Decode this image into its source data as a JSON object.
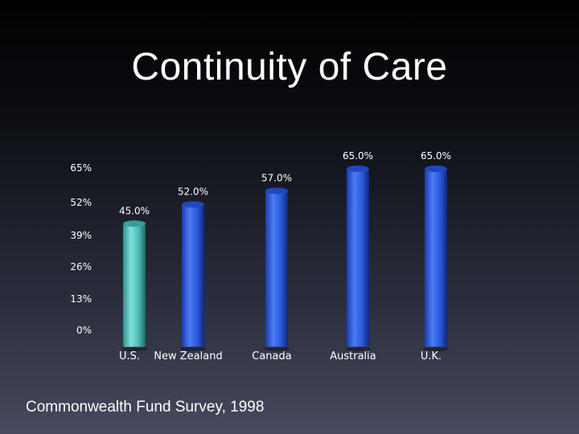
{
  "title": "Continuity of Care",
  "source": "Commonwealth Fund Survey, 1998",
  "colors": {
    "us_bar": "#5fc4bf",
    "other_bar": "#2f5fe0",
    "text": "#ffffff"
  },
  "chart_data": {
    "type": "bar",
    "title": "",
    "xlabel": "",
    "ylabel": "",
    "categories": [
      "U.S.",
      "New Zealand",
      "Canada",
      "Australia",
      "U.K."
    ],
    "values": [
      45.0,
      52.0,
      57.0,
      65.0,
      65.0
    ],
    "data_labels": [
      "45.0%",
      "52.0%",
      "57.0%",
      "65.0%",
      "65.0%"
    ],
    "y_ticks": [
      "0%",
      "13%",
      "26%",
      "39%",
      "52%",
      "65%"
    ],
    "y_tick_values": [
      0,
      13,
      26,
      39,
      52,
      65
    ],
    "ylim": [
      0,
      65
    ],
    "grid": false,
    "legend": "none"
  }
}
